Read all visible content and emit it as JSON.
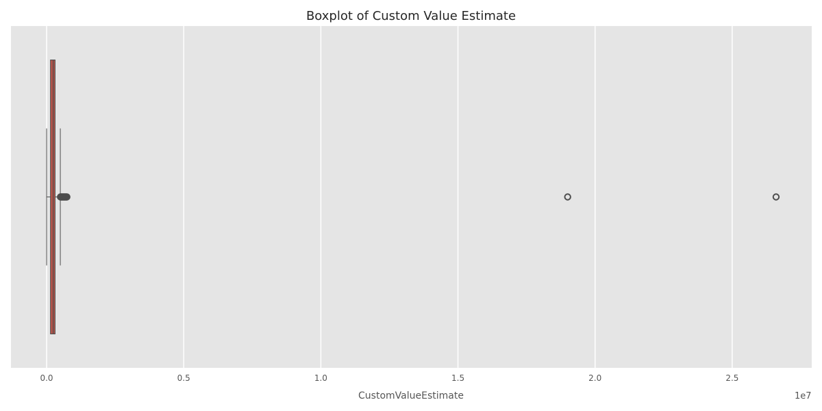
{
  "chart_data": {
    "type": "box",
    "title": "Boxplot of Custom Value Estimate",
    "xlabel": "CustomValueEstimate",
    "ylabel": "",
    "axis_scale_note": "1e7",
    "x_ticks": [
      0.0,
      0.5,
      1.0,
      1.5,
      2.0,
      2.5
    ],
    "x_tick_labels": [
      "0.0",
      "0.5",
      "1.0",
      "1.5",
      "2.0",
      "2.5"
    ],
    "xlim": [
      -0.13,
      2.79
    ],
    "grid": true,
    "orientation": "horizontal",
    "box": {
      "whisker_low": 0.0,
      "q1": 0.014,
      "median": 0.024,
      "q3": 0.031,
      "whisker_high": 0.05,
      "outliers": [
        0.0505,
        0.052,
        0.054,
        0.056,
        0.058,
        0.06,
        0.062,
        0.064,
        0.066,
        0.068,
        0.07,
        0.072,
        0.074,
        1.9,
        2.66
      ]
    },
    "colors": {
      "plot_background": "#e5e5e5",
      "grid": "#ffffff",
      "box_fill": "#b5544a",
      "line": "#4d4d4d"
    }
  }
}
